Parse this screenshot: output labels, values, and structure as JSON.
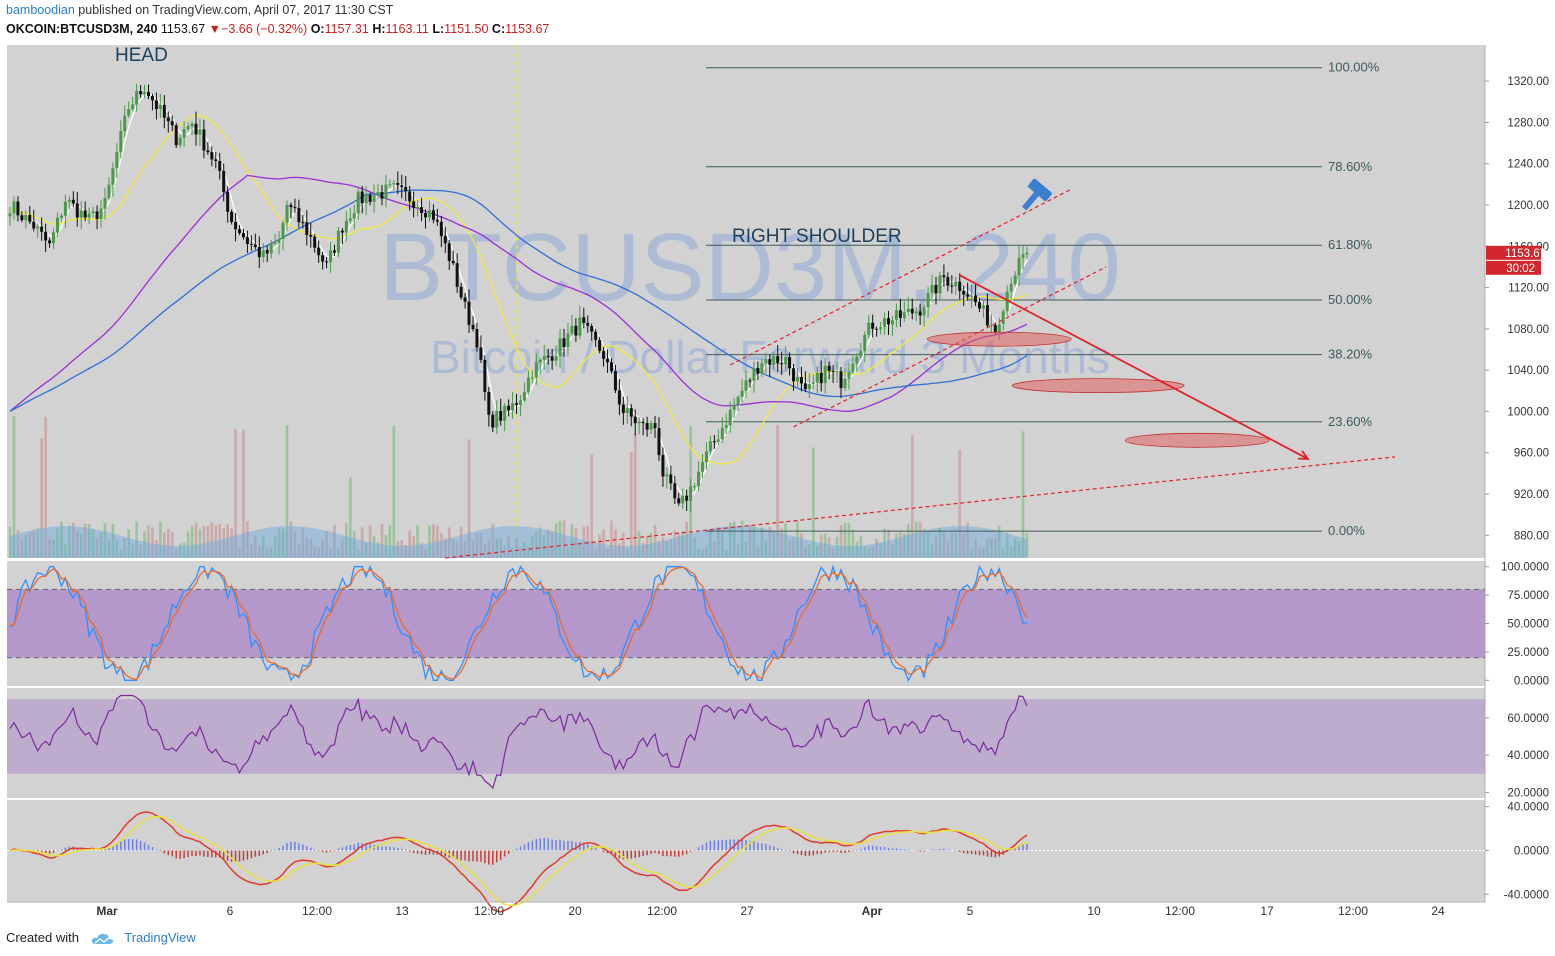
{
  "header": {
    "user": "bamboodian",
    "published_text": " published on TradingView.com, April 07, 2017 11:30 CST"
  },
  "ohlc_bar": {
    "symbol": "OKCOIN:BTCUSD3M, 240",
    "last": "1153.67",
    "change": "▼−3.66 (−0.32%)",
    "open_label": "O:",
    "open": "1157.31",
    "high_label": "H:",
    "high": "1163.11",
    "low_label": "L:",
    "low": "1151.50",
    "close_label": "C:",
    "close": "1153.67"
  },
  "footer": {
    "created_with": "Created with",
    "brand": "TradingView"
  },
  "colors": {
    "panel_bg": "#d2d2d2",
    "up": "#4a9a4a",
    "down": "#111111",
    "sma_white": "#ffffff",
    "sma_yellow": "#f2ea3c",
    "sma_purple": "#9a2fd6",
    "sma_blue": "#2f6fd6",
    "fib": "#3d5a5a",
    "arrow": "#e0202a",
    "stoch_k": "#2f8fff",
    "stoch_d": "#ee6a2a",
    "rsi": "#7a2a9a",
    "band": "#a77fc9"
  },
  "chart_data": {
    "type": "candlestick",
    "symbol": "OKCOIN:BTCUSD3M",
    "interval": "240",
    "watermark": "BTCUSD3M, 240",
    "watermark_sub": "Bitcoin / Dollar Forward 3 Months",
    "x_ticks": [
      "Mar",
      "6",
      "12:00",
      "13",
      "12:00",
      "20",
      "12:00",
      "27",
      "Apr",
      "5",
      "10",
      "12:00",
      "17",
      "12:00",
      "24"
    ],
    "price_axis": [
      "1320.00",
      "1280.00",
      "1240.00",
      "1200.00",
      "1160.00",
      "1120.00",
      "1080.00",
      "1040.00",
      "1000.00",
      "960.00",
      "920.00",
      "880.00"
    ],
    "ylim": [
      858,
      1355
    ],
    "last_price_label": "1153.67",
    "countdown_label": "30:02",
    "close_anchors": [
      [
        0,
        1200
      ],
      [
        6,
        1180
      ],
      [
        10,
        1160
      ],
      [
        14,
        1205
      ],
      [
        20,
        1185
      ],
      [
        24,
        1200
      ],
      [
        27,
        1250
      ],
      [
        30,
        1295
      ],
      [
        34,
        1315
      ],
      [
        38,
        1290
      ],
      [
        42,
        1265
      ],
      [
        46,
        1280
      ],
      [
        52,
        1240
      ],
      [
        56,
        1185
      ],
      [
        60,
        1165
      ],
      [
        64,
        1150
      ],
      [
        68,
        1165
      ],
      [
        70,
        1200
      ],
      [
        75,
        1175
      ],
      [
        80,
        1140
      ],
      [
        84,
        1180
      ],
      [
        88,
        1205
      ],
      [
        92,
        1210
      ],
      [
        97,
        1215
      ],
      [
        102,
        1205
      ],
      [
        107,
        1190
      ],
      [
        111,
        1150
      ],
      [
        115,
        1100
      ],
      [
        118,
        1070
      ],
      [
        121,
        990
      ],
      [
        126,
        1000
      ],
      [
        129,
        1015
      ],
      [
        132,
        1040
      ],
      [
        138,
        1060
      ],
      [
        144,
        1085
      ],
      [
        150,
        1055
      ],
      [
        155,
        1000
      ],
      [
        160,
        985
      ],
      [
        163,
        985
      ],
      [
        165,
        940
      ],
      [
        169,
        905
      ],
      [
        172,
        925
      ],
      [
        175,
        950
      ],
      [
        180,
        985
      ],
      [
        185,
        1020
      ],
      [
        190,
        1050
      ],
      [
        196,
        1050
      ],
      [
        201,
        1015
      ],
      [
        206,
        1040
      ],
      [
        210,
        1030
      ],
      [
        214,
        1060
      ],
      [
        218,
        1085
      ],
      [
        224,
        1090
      ],
      [
        230,
        1100
      ],
      [
        236,
        1130
      ],
      [
        241,
        1120
      ],
      [
        246,
        1095
      ],
      [
        249,
        1080
      ],
      [
        253,
        1130
      ],
      [
        257,
        1153.67
      ]
    ],
    "annotations": {
      "head": "HEAD",
      "right_shoulder": "RIGHT SHOULDER"
    },
    "fibonacci": [
      {
        "level": "100.00%",
        "price": 1333
      },
      {
        "level": "78.60%",
        "price": 1237
      },
      {
        "level": "61.80%",
        "price": 1161
      },
      {
        "level": "50.00%",
        "price": 1108
      },
      {
        "level": "38.20%",
        "price": 1055
      },
      {
        "level": "23.60%",
        "price": 990
      },
      {
        "level": "0.00%",
        "price": 884
      }
    ],
    "indicators": [
      {
        "name": "Stochastic",
        "axis": [
          "100.0000",
          "75.0000",
          "50.0000",
          "25.0000",
          "0.0000"
        ],
        "levels": [
          80,
          20
        ],
        "ylim": [
          -5,
          105
        ]
      },
      {
        "name": "RSI",
        "axis": [
          "60.0000",
          "40.0000",
          "20.0000"
        ],
        "band": [
          30,
          70
        ],
        "ylim": [
          17,
          76
        ]
      },
      {
        "name": "MACD",
        "axis": [
          "40.0000",
          "0.0000",
          "-40.0000"
        ],
        "ylim": [
          -47,
          46
        ]
      }
    ]
  }
}
